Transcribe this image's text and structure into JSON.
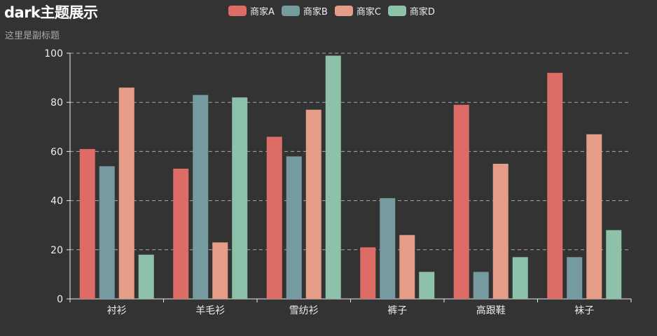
{
  "chart_data": {
    "type": "bar",
    "title": "dark主题展示",
    "subtitle": "这里是副标题",
    "categories": [
      "衬衫",
      "羊毛衫",
      "雪纺衫",
      "裤子",
      "高跟鞋",
      "袜子"
    ],
    "series": [
      {
        "name": "商家A",
        "color": "#dd6b66",
        "values": [
          61,
          53,
          66,
          21,
          79,
          92
        ]
      },
      {
        "name": "商家B",
        "color": "#759aa0",
        "values": [
          54,
          83,
          58,
          41,
          11,
          17
        ]
      },
      {
        "name": "商家C",
        "color": "#e69d87",
        "values": [
          86,
          23,
          77,
          26,
          55,
          67
        ]
      },
      {
        "name": "商家D",
        "color": "#8dc1a9",
        "values": [
          18,
          82,
          99,
          11,
          17,
          28
        ]
      }
    ],
    "ylim": [
      0,
      100
    ],
    "yticks": [
      0,
      20,
      40,
      60,
      80,
      100
    ],
    "grid": true,
    "legend_position": "top-center",
    "theme": {
      "background": "#333333",
      "text": "#eeeeee",
      "gridline": "#aaaaaa"
    }
  }
}
